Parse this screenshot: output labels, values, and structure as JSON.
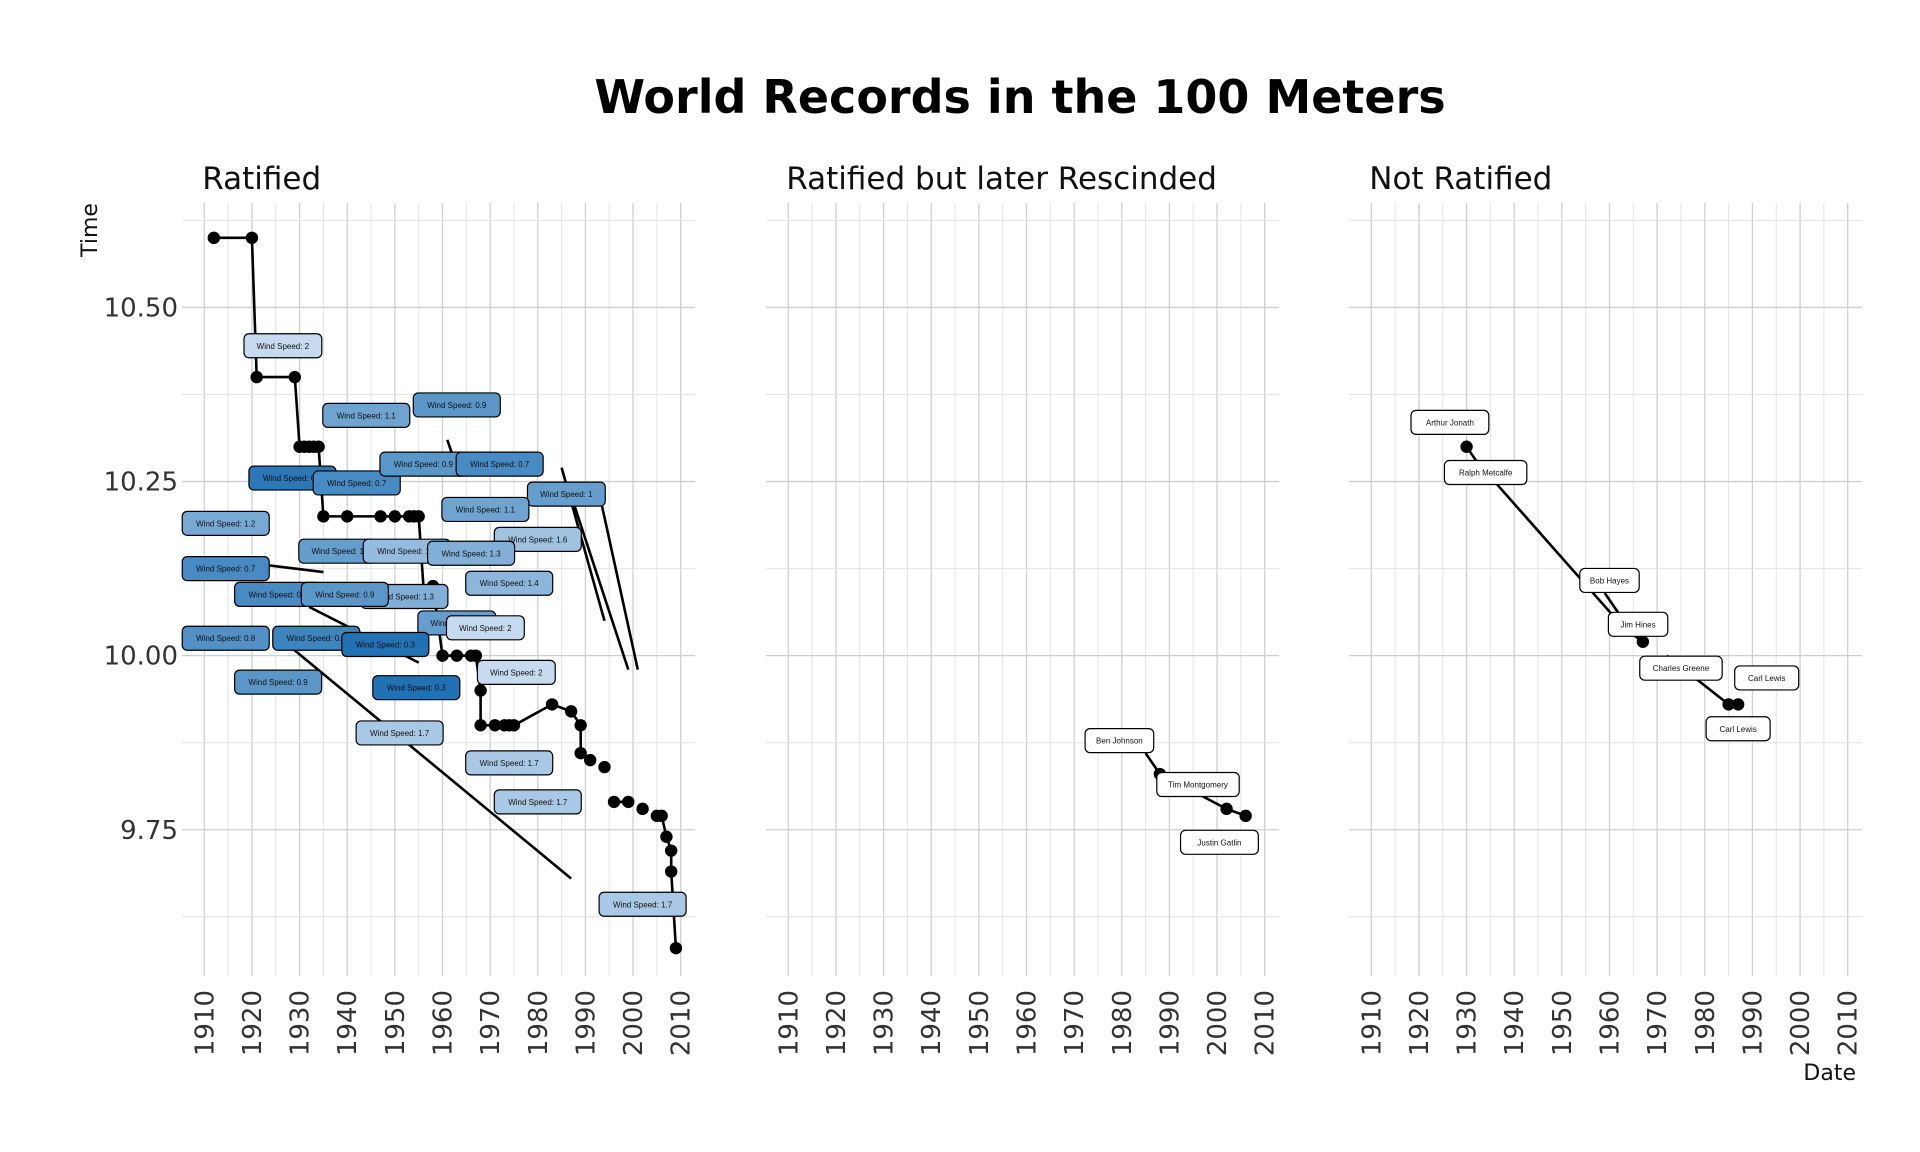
{
  "chart_data": {
    "type": "line",
    "title": "World Records in the 100 Meters",
    "xlabel": "Date",
    "ylabel": "Time",
    "xlim": [
      1907,
      2013
    ],
    "ylim": [
      9.54,
      10.65
    ],
    "x_ticks": [
      "1910",
      "1920",
      "1930",
      "1940",
      "1950",
      "1960",
      "1970",
      "1980",
      "1990",
      "2000",
      "2010"
    ],
    "y_ticks": [
      {
        "value": 9.75,
        "label": "9.75"
      },
      {
        "value": 10.0,
        "label": "10.00"
      },
      {
        "value": 10.25,
        "label": "10.25"
      },
      {
        "value": 10.5,
        "label": "10.50"
      }
    ],
    "color_scale": {
      "low": "#c6dbef",
      "high": "#2171b5"
    },
    "facets": [
      {
        "title": "Ratified",
        "points": [
          [
            1912,
            10.6
          ],
          [
            1920,
            10.6
          ],
          [
            1921,
            10.4
          ],
          [
            1929,
            10.4
          ],
          [
            1930,
            10.3
          ],
          [
            1931,
            10.3
          ],
          [
            1932,
            10.3
          ],
          [
            1933,
            10.3
          ],
          [
            1934,
            10.3
          ],
          [
            1935,
            10.2
          ],
          [
            1940,
            10.2
          ],
          [
            1947,
            10.2
          ],
          [
            1950,
            10.2
          ],
          [
            1953,
            10.2
          ],
          [
            1954,
            10.2
          ],
          [
            1955,
            10.2
          ],
          [
            1958,
            10.1
          ],
          [
            1960,
            10.0
          ],
          [
            1963,
            10.0
          ],
          [
            1966,
            10.0
          ],
          [
            1967,
            10.0
          ],
          [
            1968,
            9.95
          ],
          [
            1968,
            9.9
          ],
          [
            1971,
            9.9
          ],
          [
            1973,
            9.9
          ],
          [
            1974,
            9.9
          ],
          [
            1975,
            9.9
          ],
          [
            1983,
            9.93
          ],
          [
            1987,
            9.92
          ],
          [
            1989,
            9.9
          ],
          [
            1989,
            9.86
          ],
          [
            1991,
            9.85
          ],
          [
            1994,
            9.84
          ],
          [
            1996,
            9.79
          ],
          [
            1999,
            9.79
          ],
          [
            2002,
            9.78
          ],
          [
            2005,
            9.77
          ],
          [
            2006,
            9.77
          ],
          [
            2007,
            9.74
          ],
          [
            2008,
            9.72
          ],
          [
            2008,
            9.69
          ],
          [
            2009,
            9.58
          ]
        ],
        "segments": [
          [
            [
              1920,
              10.6
            ],
            [
              1921,
              10.4
            ]
          ],
          [
            [
              1929,
              10.4
            ],
            [
              1930,
              10.3
            ]
          ],
          [
            [
              1934,
              10.3
            ],
            [
              1935,
              10.2
            ]
          ],
          [
            [
              1955,
              10.2
            ],
            [
              1955,
              10.2
            ],
            [
              1956,
              10.1
            ]
          ],
          [
            [
              1958,
              10.1
            ],
            [
              1960,
              10.0
            ]
          ],
          [
            [
              1967,
              10.0
            ],
            [
              1968,
              9.95
            ],
            [
              1968,
              9.9
            ]
          ],
          [
            [
              1975,
              9.9
            ],
            [
              1983,
              9.93
            ],
            [
              1987,
              9.92
            ],
            [
              1989,
              9.9
            ],
            [
              1989,
              9.86
            ]
          ],
          [
            [
              1996,
              9.79
            ],
            [
              1999,
              9.79
            ]
          ],
          [
            [
              2005,
              9.77
            ],
            [
              2006,
              9.77
            ],
            [
              2007,
              9.74
            ],
            [
              2008,
              9.72
            ],
            [
              2008,
              9.69
            ],
            [
              2009,
              9.58
            ]
          ],
          [
            [
              1961,
              10.31
            ],
            [
              1962,
              10.29
            ]
          ],
          [
            [
              1985,
              10.27
            ],
            [
              1994,
              10.05
            ]
          ],
          [
            [
              1987,
              10.23
            ],
            [
              1999,
              9.98
            ]
          ],
          [
            [
              1993,
              10.23
            ],
            [
              2001,
              9.98
            ]
          ],
          [
            [
              1923,
              10.13
            ],
            [
              1935,
              10.12
            ]
          ],
          [
            [
              1925,
              10.03
            ],
            [
              1987,
              9.68
            ]
          ],
          [
            [
              1932,
              10.07
            ],
            [
              1955,
              9.99
            ]
          ]
        ],
        "labels": [
          {
            "x": 1926.5,
            "y": 10.445,
            "text": "Wind Speed: 2",
            "wind": 2.0
          },
          {
            "x": 1944,
            "y": 10.345,
            "text": "Wind Speed: 1.1",
            "wind": 1.1
          },
          {
            "x": 1963,
            "y": 10.36,
            "text": "Wind Speed: 0.9",
            "wind": 0.9
          },
          {
            "x": 1928.5,
            "y": 10.255,
            "text": "Wind Speed: 0.4",
            "wind": 0.4
          },
          {
            "x": 1942,
            "y": 10.248,
            "text": "Wind Speed: 0.7",
            "wind": 0.7
          },
          {
            "x": 1956,
            "y": 10.275,
            "text": "Wind Speed: 0.9",
            "wind": 0.9
          },
          {
            "x": 1972,
            "y": 10.275,
            "text": "Wind Speed: 0.7",
            "wind": 0.7
          },
          {
            "x": 1986,
            "y": 10.232,
            "text": "Wind Speed: 1",
            "wind": 1.0
          },
          {
            "x": 1914.5,
            "y": 10.19,
            "text": "Wind Speed: 1.2",
            "wind": 1.2
          },
          {
            "x": 1969,
            "y": 10.21,
            "text": "Wind Speed: 1.1",
            "wind": 1.1
          },
          {
            "x": 1980,
            "y": 10.167,
            "text": "Wind Speed: 1.6",
            "wind": 1.6
          },
          {
            "x": 1938,
            "y": 10.15,
            "text": "Wind Speed: 1",
            "wind": 1.0
          },
          {
            "x": 1952.5,
            "y": 10.15,
            "text": "Wind Speed: 1.5",
            "wind": 1.5
          },
          {
            "x": 1966,
            "y": 10.147,
            "text": "Wind Speed: 1.3",
            "wind": 1.3
          },
          {
            "x": 1914.5,
            "y": 10.125,
            "text": "Wind Speed: 0.7",
            "wind": 0.7
          },
          {
            "x": 1974,
            "y": 10.104,
            "text": "Wind Speed: 1.4",
            "wind": 1.4
          },
          {
            "x": 1925.5,
            "y": 10.088,
            "text": "Wind Speed: 0.7",
            "wind": 0.7
          },
          {
            "x": 1952,
            "y": 10.085,
            "text": "Wind Speed: 1.3",
            "wind": 1.3
          },
          {
            "x": 1939.5,
            "y": 10.088,
            "text": "Wind Speed: 0.9",
            "wind": 0.9
          },
          {
            "x": 1963,
            "y": 10.047,
            "text": "Wind Speed: 1",
            "wind": 1.0
          },
          {
            "x": 1969,
            "y": 10.04,
            "text": "Wind Speed: 2",
            "wind": 2.0
          },
          {
            "x": 1914.5,
            "y": 10.025,
            "text": "Wind Speed: 0.8",
            "wind": 0.8
          },
          {
            "x": 1933.5,
            "y": 10.025,
            "text": "Wind Speed: 0.6",
            "wind": 0.6
          },
          {
            "x": 1948,
            "y": 10.016,
            "text": "Wind Speed: 0.3",
            "wind": 0.3
          },
          {
            "x": 1975.5,
            "y": 9.976,
            "text": "Wind Speed: 2",
            "wind": 2.0
          },
          {
            "x": 1925.5,
            "y": 9.962,
            "text": "Wind Speed: 0.9",
            "wind": 0.9
          },
          {
            "x": 1954.5,
            "y": 9.954,
            "text": "Wind Speed: 0.3",
            "wind": 0.3
          },
          {
            "x": 1951,
            "y": 9.889,
            "text": "Wind Speed: 1.7",
            "wind": 1.7
          },
          {
            "x": 1974,
            "y": 9.846,
            "text": "Wind Speed: 1.7",
            "wind": 1.7
          },
          {
            "x": 1980,
            "y": 9.79,
            "text": "Wind Speed: 1.7",
            "wind": 1.7
          },
          {
            "x": 2002,
            "y": 9.643,
            "text": "Wind Speed: 1.7",
            "wind": 1.7
          }
        ]
      },
      {
        "title": "Ratified but later Rescinded",
        "points": [
          [
            1988,
            9.83
          ],
          [
            2002,
            9.78
          ],
          [
            2006,
            9.77
          ]
        ],
        "segments": [
          [
            [
              1988,
              9.83
            ],
            [
              2002,
              9.78
            ],
            [
              2006,
              9.77
            ]
          ],
          [
            [
              1985,
              9.86
            ],
            [
              1988,
              9.83
            ]
          ]
        ],
        "labels": [
          {
            "x": 1979.5,
            "y": 9.878,
            "text": "Ben Johnson"
          },
          {
            "x": 1996,
            "y": 9.815,
            "text": "Tim Montgomery"
          },
          {
            "x": 2000.5,
            "y": 9.732,
            "text": "Justin Gatlin"
          }
        ]
      },
      {
        "title": "Not Ratified",
        "points": [
          [
            1930,
            10.3
          ],
          [
            1967,
            10.02
          ],
          [
            1985,
            9.93
          ],
          [
            1987,
            9.93
          ]
        ],
        "segments": [
          [
            [
              1930,
              10.3
            ],
            [
              1932,
              10.28
            ],
            [
              1963,
              10.04
            ],
            [
              1967,
              10.02
            ]
          ],
          [
            [
              1972,
              10.0
            ],
            [
              1985,
              9.93
            ],
            [
              1987,
              9.93
            ]
          ],
          [
            [
              1959,
              10.09
            ],
            [
              1963,
              10.05
            ]
          ]
        ],
        "labels": [
          {
            "x": 1926.5,
            "y": 10.335,
            "text": "Arthur Jonath"
          },
          {
            "x": 1934,
            "y": 10.263,
            "text": "Ralph Metcalfe"
          },
          {
            "x": 1960,
            "y": 10.108,
            "text": "Bob Hayes"
          },
          {
            "x": 1966,
            "y": 10.045,
            "text": "Jim Hines"
          },
          {
            "x": 1975,
            "y": 9.982,
            "text": "Charles Greene"
          },
          {
            "x": 1993,
            "y": 9.968,
            "text": "Carl Lewis"
          },
          {
            "x": 1987,
            "y": 9.895,
            "text": "Carl Lewis"
          }
        ]
      }
    ]
  }
}
